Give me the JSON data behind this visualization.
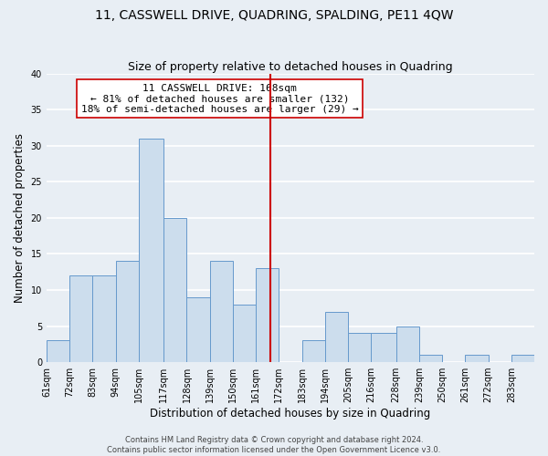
{
  "title": "11, CASSWELL DRIVE, QUADRING, SPALDING, PE11 4QW",
  "subtitle": "Size of property relative to detached houses in Quadring",
  "xlabel": "Distribution of detached houses by size in Quadring",
  "ylabel": "Number of detached properties",
  "footer_lines": [
    "Contains HM Land Registry data © Crown copyright and database right 2024.",
    "Contains public sector information licensed under the Open Government Licence v3.0."
  ],
  "bin_edges": [
    61,
    72,
    83,
    94,
    105,
    117,
    128,
    139,
    150,
    161,
    172,
    183,
    194,
    205,
    216,
    228,
    239,
    250,
    261,
    272,
    283,
    294
  ],
  "bin_labels": [
    "61sqm",
    "72sqm",
    "83sqm",
    "94sqm",
    "105sqm",
    "117sqm",
    "128sqm",
    "139sqm",
    "150sqm",
    "161sqm",
    "172sqm",
    "183sqm",
    "194sqm",
    "205sqm",
    "216sqm",
    "228sqm",
    "239sqm",
    "250sqm",
    "261sqm",
    "272sqm",
    "283sqm"
  ],
  "counts": [
    3,
    12,
    12,
    14,
    31,
    20,
    9,
    14,
    8,
    13,
    0,
    3,
    7,
    4,
    4,
    5,
    1,
    0,
    1,
    0,
    1
  ],
  "bar_color": "#ccdded",
  "bar_edge_color": "#6699cc",
  "marker_value": 168,
  "marker_color": "#cc0000",
  "annotation_title": "11 CASSWELL DRIVE: 168sqm",
  "annotation_line1": "← 81% of detached houses are smaller (132)",
  "annotation_line2": "18% of semi-detached houses are larger (29) →",
  "annotation_box_color": "#ffffff",
  "annotation_box_edge": "#cc0000",
  "ylim": [
    0,
    40
  ],
  "yticks": [
    0,
    5,
    10,
    15,
    20,
    25,
    30,
    35,
    40
  ],
  "background_color": "#e8eef4",
  "grid_color": "#ffffff",
  "title_fontsize": 10,
  "subtitle_fontsize": 9,
  "axis_label_fontsize": 8.5,
  "tick_fontsize": 7,
  "annotation_fontsize": 8,
  "footer_fontsize": 6
}
